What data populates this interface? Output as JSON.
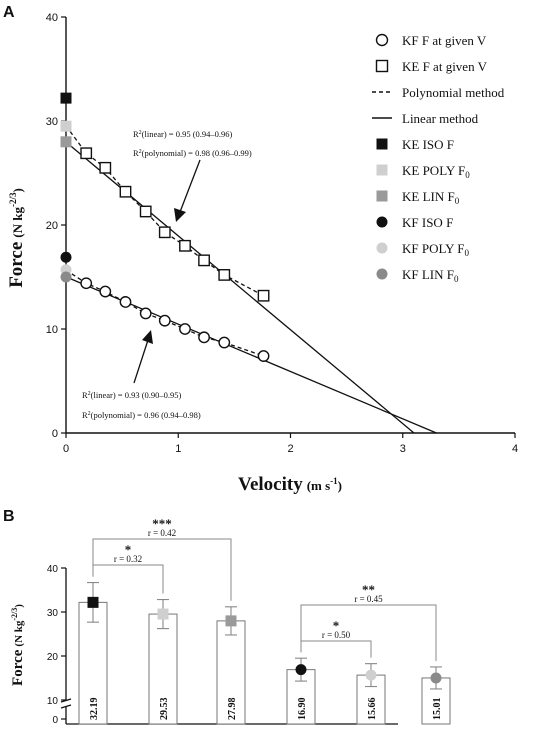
{
  "panel_a_label": "A",
  "panel_b_label": "B",
  "chart_data": [
    {
      "type": "scatter",
      "xlabel": "Velocity",
      "xlabel_unit": "(m s",
      "xlabel_unit_sup": "-1",
      "xlabel_unit_close": ")",
      "ylabel": "Force",
      "ylabel_unit": "(N kg",
      "ylabel_unit_sup": "-2/3",
      "ylabel_unit_close": ")",
      "xlim": [
        0,
        4
      ],
      "ylim": [
        0,
        40
      ],
      "xticks": [
        "0",
        "1",
        "2",
        "3",
        "4"
      ],
      "yticks": [
        "0",
        "10",
        "20",
        "30",
        "40"
      ],
      "series": [
        {
          "name": "KF F at given V",
          "marker": "circle-open",
          "x": [
            0.18,
            0.35,
            0.53,
            0.71,
            0.88,
            1.06,
            1.23,
            1.41,
            1.76
          ],
          "y": [
            14.4,
            13.6,
            12.6,
            11.5,
            10.8,
            10.0,
            9.2,
            8.7,
            7.4
          ]
        },
        {
          "name": "KE F at given V",
          "marker": "square-open",
          "x": [
            0.18,
            0.35,
            0.53,
            0.71,
            0.88,
            1.06,
            1.23,
            1.41,
            1.76
          ],
          "y": [
            26.9,
            25.5,
            23.2,
            21.3,
            19.3,
            18.0,
            16.6,
            15.2,
            13.2
          ]
        }
      ],
      "lines": [
        {
          "name": "Polynomial method",
          "style": "dashed"
        },
        {
          "name": "Linear method",
          "style": "solid"
        }
      ],
      "y_axis_points": [
        {
          "name": "KE ISO F",
          "marker": "square",
          "color": "#111111",
          "y": 32.2
        },
        {
          "name": "KE POLY F0",
          "marker": "square",
          "color": "#cfcfcf",
          "y": 29.5
        },
        {
          "name": "KE LIN F0",
          "marker": "square",
          "color": "#9a9a9a",
          "y": 28.0
        },
        {
          "name": "KF ISO F",
          "marker": "circle",
          "color": "#111111",
          "y": 16.9
        },
        {
          "name": "KF POLY F0",
          "marker": "circle",
          "color": "#cfcfcf",
          "y": 15.7
        },
        {
          "name": "KF LIN F0",
          "marker": "circle",
          "color": "#8a8a8a",
          "y": 15.0
        }
      ],
      "fits": {
        "ke_linear": {
          "y0": 27.98,
          "x_intercept": 3.1
        },
        "kf_linear": {
          "y0": 15.01,
          "x_intercept": 3.3
        },
        "ke_poly": {
          "y0": 29.53
        },
        "kf_poly": {
          "y0": 15.66
        }
      },
      "legend": {
        "placement": "right",
        "entries": [
          {
            "label": "KF F at given V",
            "marker": "circle-open"
          },
          {
            "label": "KE F at given V",
            "marker": "square-open"
          },
          {
            "label": "Polynomial method",
            "marker": "dashed-line"
          },
          {
            "label": "Linear method",
            "marker": "solid-line"
          },
          {
            "label": "KE ISO F",
            "marker": "square",
            "color": "#111111"
          },
          {
            "label": "KE POLY F",
            "sub": "0",
            "marker": "square",
            "color": "#cfcfcf"
          },
          {
            "label": "KE LIN F",
            "sub": "0",
            "marker": "square",
            "color": "#9a9a9a"
          },
          {
            "label": "KF ISO F",
            "marker": "circle",
            "color": "#111111"
          },
          {
            "label": "KF POLY F",
            "sub": "0",
            "marker": "circle",
            "color": "#cfcfcf"
          },
          {
            "label": "KF LIN F",
            "sub": "0",
            "marker": "circle",
            "color": "#8a8a8a"
          }
        ]
      },
      "annotations": {
        "ke_r2_linear": {
          "pre": "R",
          "sup": "2",
          "text": "(linear) = 0.95 (0.94–0.96)"
        },
        "ke_r2_poly": {
          "pre": "R",
          "sup": "2",
          "text": "(polynomial) = 0.98 (0.96–0.99)"
        },
        "kf_r2_linear": {
          "pre": "R",
          "sup": "2",
          "text": "(linear) = 0.93 (0.90–0.95)"
        },
        "kf_r2_poly": {
          "pre": "R",
          "sup": "2",
          "text": "(polynomial) = 0.96 (0.94–0.98)"
        }
      }
    },
    {
      "type": "bar",
      "ylabel": "Force",
      "ylabel_unit": "(N kg",
      "ylabel_unit_sup": "-2/3",
      "ylabel_unit_close": ")",
      "ylim": [
        0,
        40
      ],
      "yticks": [
        "10",
        "20",
        "30",
        "40"
      ],
      "y_axis_break_label": "0",
      "grid": false,
      "bars": [
        {
          "value": 32.19,
          "label": "32.19",
          "err": 4.5,
          "marker": "square",
          "color": "#111111"
        },
        {
          "value": 29.53,
          "label": "29.53",
          "err": 3.3,
          "marker": "square",
          "color": "#cfcfcf"
        },
        {
          "value": 27.98,
          "label": "27.98",
          "err": 3.2,
          "marker": "square",
          "color": "#9a9a9a"
        },
        {
          "value": 16.9,
          "label": "16.90",
          "err": 2.6,
          "marker": "circle",
          "color": "#111111"
        },
        {
          "value": 15.66,
          "label": "15.66",
          "err": 2.6,
          "marker": "circle",
          "color": "#cfcfcf"
        },
        {
          "value": 15.01,
          "label": "15.01",
          "err": 2.5,
          "marker": "circle",
          "color": "#8a8a8a"
        }
      ],
      "comparisons": [
        {
          "from": 0,
          "to": 2,
          "stars": "***",
          "r": "r = 0.42"
        },
        {
          "from": 0,
          "to": 1,
          "stars": "*",
          "r": "r = 0.32"
        },
        {
          "from": 3,
          "to": 5,
          "stars": "**",
          "r": "r = 0.45"
        },
        {
          "from": 3,
          "to": 4,
          "stars": "*",
          "r": "r = 0.50"
        }
      ]
    }
  ]
}
